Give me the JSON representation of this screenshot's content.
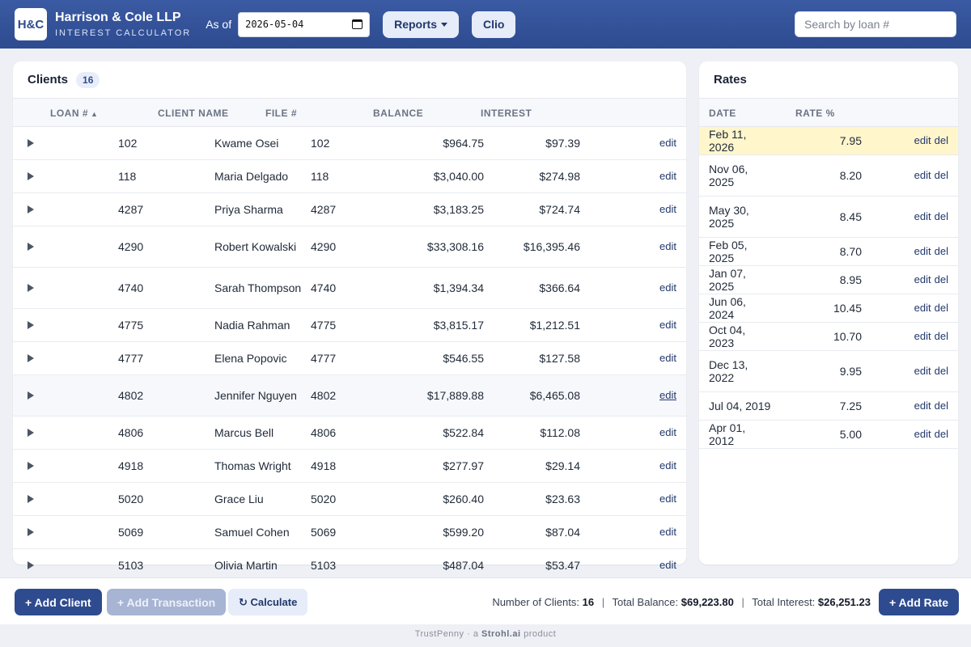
{
  "header": {
    "logo": "H&C",
    "firm_name": "Harrison & Cole LLP",
    "subtitle": "INTEREST CALCULATOR",
    "as_of_label": "As of",
    "as_of_date": "2026-05-04",
    "reports_label": "Reports",
    "clio_label": "Clio",
    "search_placeholder": "Search by loan #"
  },
  "clients": {
    "title": "Clients",
    "count": "16",
    "columns": {
      "loan": "LOAN #",
      "sort_indicator": "▲",
      "name": "CLIENT NAME",
      "file": "FILE #",
      "balance": "BALANCE",
      "interest": "INTEREST"
    },
    "rows": [
      {
        "loan": "102",
        "name": "Kwame Osei",
        "file": "102",
        "balance": "$964.75",
        "interest": "$97.39",
        "action": "edit"
      },
      {
        "loan": "118",
        "name": "Maria Delgado",
        "file": "118",
        "balance": "$3,040.00",
        "interest": "$274.98",
        "action": "edit"
      },
      {
        "loan": "4287",
        "name": "Priya Sharma",
        "file": "4287",
        "balance": "$3,183.25",
        "interest": "$724.74",
        "action": "edit"
      },
      {
        "loan": "4290",
        "name": "Robert Kowalski",
        "file": "4290",
        "balance": "$33,308.16",
        "interest": "$16,395.46",
        "action": "edit"
      },
      {
        "loan": "4740",
        "name": "Sarah Thompson",
        "file": "4740",
        "balance": "$1,394.34",
        "interest": "$366.64",
        "action": "edit"
      },
      {
        "loan": "4775",
        "name": "Nadia Rahman",
        "file": "4775",
        "balance": "$3,815.17",
        "interest": "$1,212.51",
        "action": "edit"
      },
      {
        "loan": "4777",
        "name": "Elena Popovic",
        "file": "4777",
        "balance": "$546.55",
        "interest": "$127.58",
        "action": "edit"
      },
      {
        "loan": "4802",
        "name": "Jennifer Nguyen",
        "file": "4802",
        "balance": "$17,889.88",
        "interest": "$6,465.08",
        "action": "edit"
      },
      {
        "loan": "4806",
        "name": "Marcus Bell",
        "file": "4806",
        "balance": "$522.84",
        "interest": "$112.08",
        "action": "edit"
      },
      {
        "loan": "4918",
        "name": "Thomas Wright",
        "file": "4918",
        "balance": "$277.97",
        "interest": "$29.14",
        "action": "edit"
      },
      {
        "loan": "5020",
        "name": "Grace Liu",
        "file": "5020",
        "balance": "$260.40",
        "interest": "$23.63",
        "action": "edit"
      },
      {
        "loan": "5069",
        "name": "Samuel Cohen",
        "file": "5069",
        "balance": "$599.20",
        "interest": "$87.04",
        "action": "edit"
      },
      {
        "loan": "5103",
        "name": "Olivia Martin",
        "file": "5103",
        "balance": "$487.04",
        "interest": "$53.47",
        "action": "edit"
      }
    ]
  },
  "rates": {
    "title": "Rates",
    "columns": {
      "date": "DATE",
      "rate": "RATE %"
    },
    "edit_label": "edit",
    "delete_label": "del",
    "rows": [
      {
        "date": "Feb 11, 2026",
        "rate": "7.95"
      },
      {
        "date": "Nov 06, 2025",
        "rate": "8.20"
      },
      {
        "date": "May 30, 2025",
        "rate": "8.45"
      },
      {
        "date": "Feb 05, 2025",
        "rate": "8.70"
      },
      {
        "date": "Jan 07, 2025",
        "rate": "8.95"
      },
      {
        "date": "Jun 06, 2024",
        "rate": "10.45"
      },
      {
        "date": "Oct 04, 2023",
        "rate": "10.70"
      },
      {
        "date": "Dec 13, 2022",
        "rate": "9.95"
      },
      {
        "date": "Jul 04, 2019",
        "rate": "7.25"
      },
      {
        "date": "Apr 01, 2012",
        "rate": "5.00"
      }
    ]
  },
  "footer": {
    "add_client": "+ Add Client",
    "add_transaction": "+ Add Transaction",
    "calculate": "↻ Calculate",
    "add_rate": "+ Add Rate",
    "num_clients_label": "Number of Clients:",
    "num_clients": "16",
    "total_balance_label": "Total Balance:",
    "total_balance": "$69,223.80",
    "total_interest_label": "Total Interest:",
    "total_interest": "$26,251.23",
    "separator": "|"
  },
  "credit": {
    "product": "TrustPenny",
    "middle": "· a",
    "company": "Strohl.ai",
    "suffix": "product"
  }
}
